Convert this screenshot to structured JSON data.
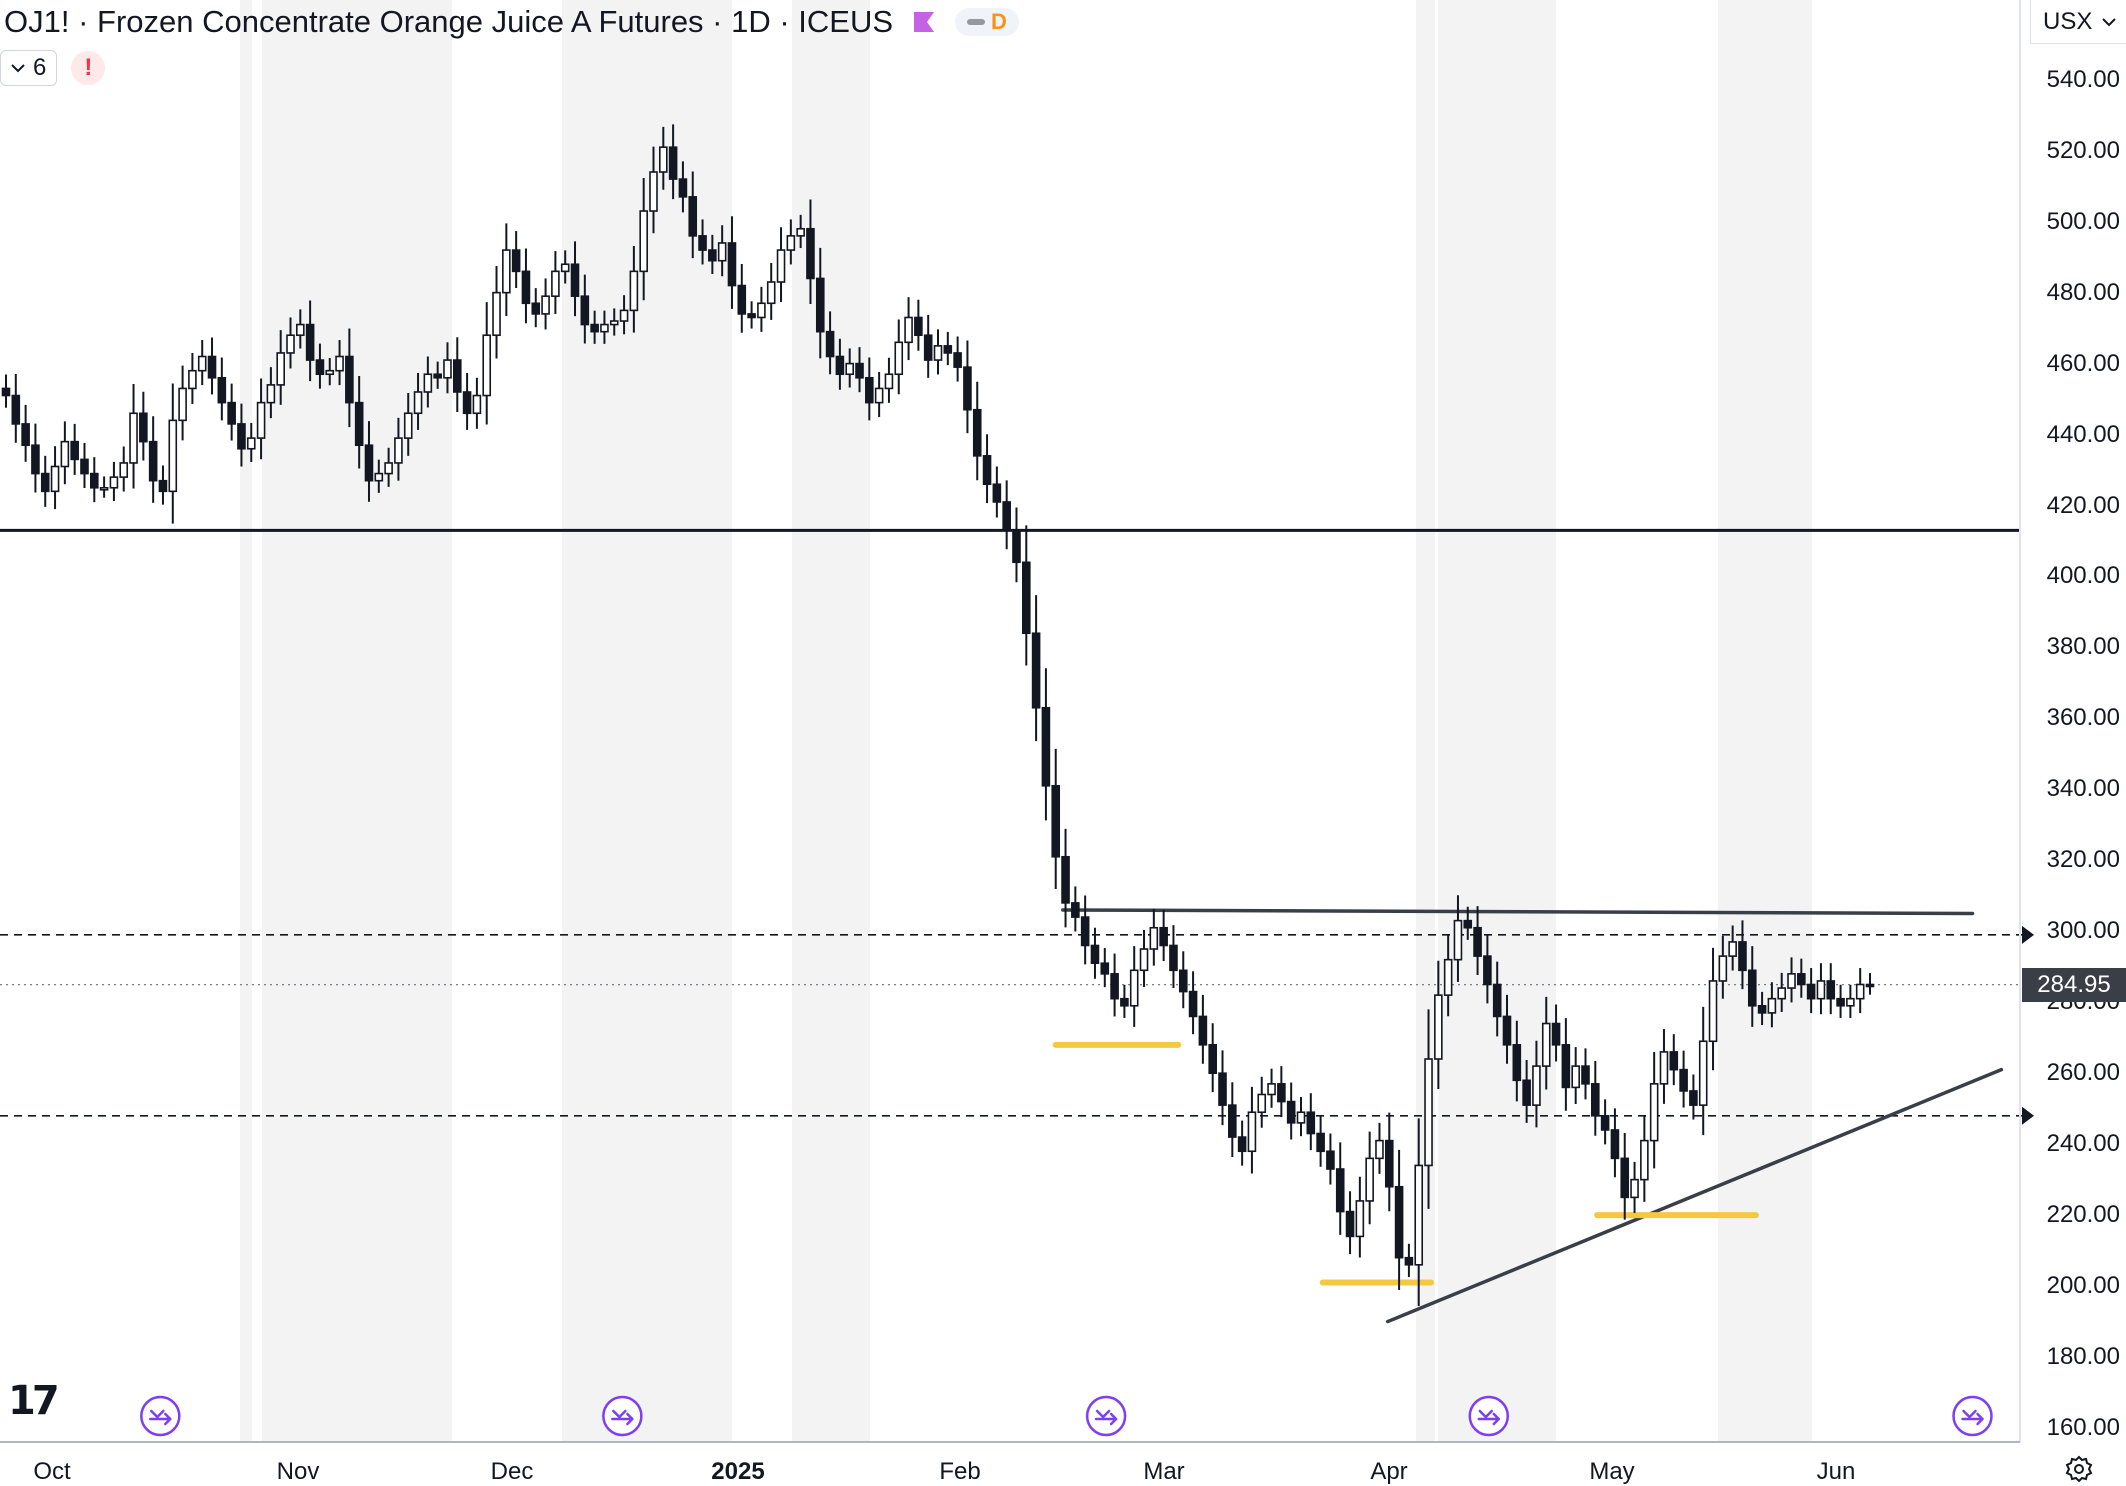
{
  "header": {
    "title": "OJ1! · Frozen Concentrate Orange Juice A Futures · 1D · ICEUS",
    "flag_color": "#c462e6",
    "interval_badge": "D",
    "collapse_count": "6",
    "warning_mark": "!",
    "currency": "USX",
    "currency_chevron": "chevron-down-icon"
  },
  "price_axis": {
    "labels": [
      "540.00",
      "520.00",
      "500.00",
      "480.00",
      "460.00",
      "440.00",
      "420.00",
      "400.00",
      "380.00",
      "360.00",
      "340.00",
      "320.00",
      "300.00",
      "280.00",
      "260.00",
      "240.00",
      "220.00",
      "200.00",
      "180.00",
      "160.00"
    ],
    "last_price_label": "284.95"
  },
  "time_axis": {
    "labels": [
      {
        "text": "Oct",
        "bold": false
      },
      {
        "text": "Nov",
        "bold": false
      },
      {
        "text": "Dec",
        "bold": false
      },
      {
        "text": "2025",
        "bold": true
      },
      {
        "text": "Feb",
        "bold": false
      },
      {
        "text": "Mar",
        "bold": false
      },
      {
        "text": "Apr",
        "bold": false
      },
      {
        "text": "May",
        "bold": false
      },
      {
        "text": "Jun",
        "bold": false
      }
    ]
  },
  "colors": {
    "candle_up_fill": "#ffffff",
    "candle_down_fill": "#131722",
    "highlight": "#f5c842",
    "event_icon": "#7e3ff2",
    "session_shade": "#f3f3f3"
  },
  "icons": {
    "logo": "tradingview-logo-icon",
    "settings": "settings-gear-icon",
    "event": "arrow-circle-event-icon"
  },
  "chart_data": {
    "type": "candlestick",
    "symbol": "OJ1!",
    "interval": "1D",
    "ylim": [
      160,
      550
    ],
    "last_price": 284.95,
    "grid": false,
    "x_ticks": [
      "Oct",
      "Nov",
      "Dec",
      "2025",
      "Feb",
      "Mar",
      "Apr",
      "May",
      "Jun"
    ],
    "close_series": [
      451,
      443,
      437,
      429,
      424,
      431,
      438,
      433,
      429,
      425,
      425,
      428,
      432,
      446,
      438,
      427,
      424,
      444,
      453,
      458,
      462,
      456,
      449,
      443,
      436,
      439,
      449,
      454,
      463,
      468,
      471,
      461,
      457,
      458,
      462,
      449,
      437,
      427,
      429,
      432,
      439,
      446,
      452,
      457,
      456,
      461,
      452,
      446,
      451,
      468,
      480,
      492,
      486,
      477,
      474,
      479,
      486,
      488,
      479,
      471,
      469,
      471,
      472,
      475,
      486,
      503,
      514,
      521,
      512,
      507,
      496,
      492,
      489,
      494,
      482,
      474,
      473,
      477,
      483,
      492,
      496,
      498,
      484,
      469,
      462,
      457,
      460,
      456,
      449,
      453,
      457,
      466,
      473,
      468,
      461,
      465,
      463,
      459,
      447,
      434,
      426,
      421,
      413,
      404,
      384,
      363,
      341,
      321,
      308,
      304,
      296,
      291,
      288,
      281,
      279,
      289,
      295,
      301,
      296,
      289,
      283,
      276,
      268,
      260,
      251,
      242,
      238,
      249,
      254,
      257,
      252,
      246,
      249,
      243,
      238,
      233,
      221,
      214,
      224,
      236,
      241,
      228,
      208,
      206,
      234,
      264,
      282,
      292,
      303,
      301,
      293,
      285,
      276,
      268,
      258,
      251,
      262,
      274,
      268,
      256,
      262,
      257,
      248,
      244,
      236,
      225,
      230,
      241,
      257,
      266,
      261,
      255,
      251,
      269,
      286,
      293,
      297,
      289,
      279,
      277,
      281,
      284,
      288,
      285,
      281,
      286,
      281,
      279,
      281,
      285,
      284.95
    ],
    "overlays": [
      {
        "kind": "horizontal_line",
        "price": 413,
        "style": "solid"
      },
      {
        "kind": "horizontal_line",
        "price": 299,
        "style": "dashed"
      },
      {
        "kind": "horizontal_line",
        "price": 248,
        "style": "dashed"
      },
      {
        "kind": "horizontal_line",
        "price": 284.95,
        "style": "dotted"
      },
      {
        "kind": "resistance_line",
        "from": {
          "date": "2025-02-18",
          "price": 306
        },
        "to": {
          "date": "2025-06-24",
          "price": 305
        }
      },
      {
        "kind": "trend_line",
        "from": {
          "date": "2025-04-04",
          "price": 190
        },
        "to": {
          "date": "2025-06-28",
          "price": 261
        }
      },
      {
        "kind": "highlight",
        "price": 268,
        "range": [
          "2025-02-17",
          "2025-03-06"
        ]
      },
      {
        "kind": "highlight",
        "price": 201,
        "range": [
          "2025-03-26",
          "2025-04-10"
        ]
      },
      {
        "kind": "highlight",
        "price": 220,
        "range": [
          "2025-05-03",
          "2025-05-25"
        ]
      }
    ],
    "event_markers": [
      "2024-10-16",
      "2024-12-19",
      "2025-02-24",
      "2025-04-18",
      "2025-06-24"
    ]
  }
}
